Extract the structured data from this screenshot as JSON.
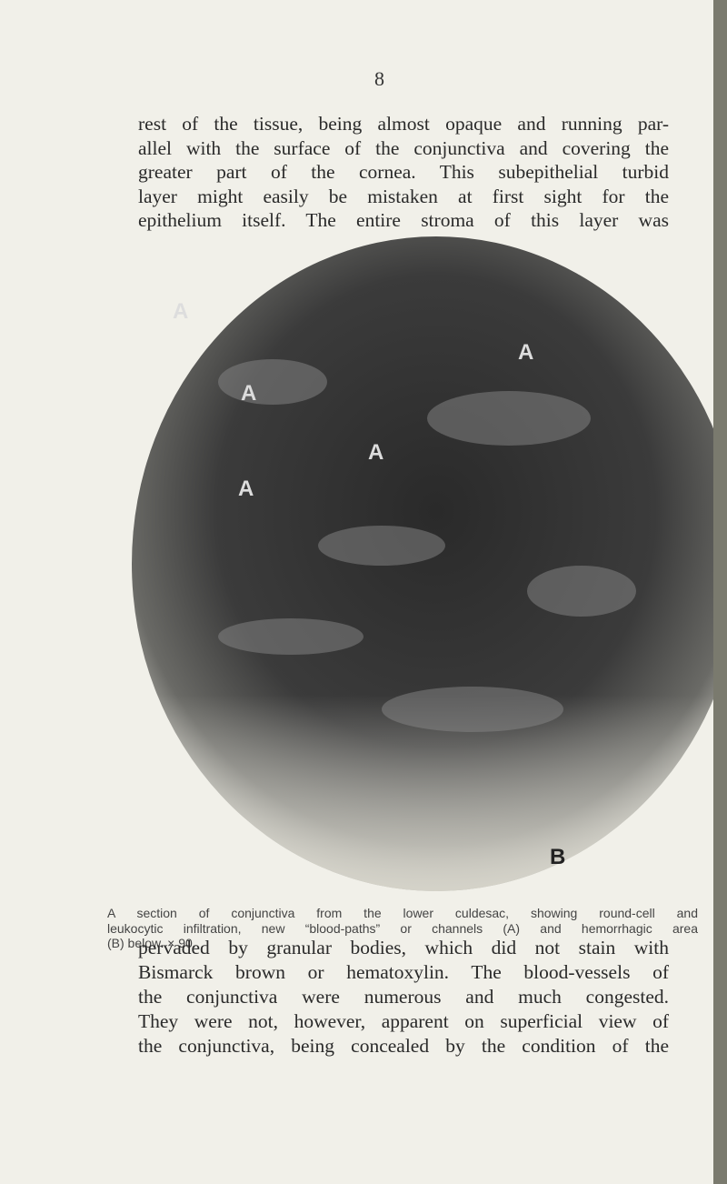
{
  "page_number": "8",
  "paragraph_1": [
    "rest of the tissue, being almost opaque and running par-",
    "allel with the surface of the conjunctiva and covering the",
    "greater part of the cornea. This subepithelial turbid",
    "layer might easily be mistaken at first sight for the",
    "epithelium itself. The entire stroma of this layer was"
  ],
  "figure": {
    "labels": [
      "A",
      "A",
      "A",
      "A",
      "A",
      "B"
    ],
    "caption": [
      "A section of conjunctiva from the lower culdesac, showing round-cell and",
      "leukocytic infiltration, new “blood-paths” or channels (A) and hemorrhagic area",
      "(B) below. × 90."
    ]
  },
  "paragraph_2": [
    "pervaded by granular bodies, which did not stain with",
    "Bismarck brown or hematoxylin. The blood-vessels of",
    "the conjunctiva were numerous and much congested.",
    "They were not, however, apparent on superficial view of",
    "the conjunctiva, being concealed by the condition of the"
  ]
}
